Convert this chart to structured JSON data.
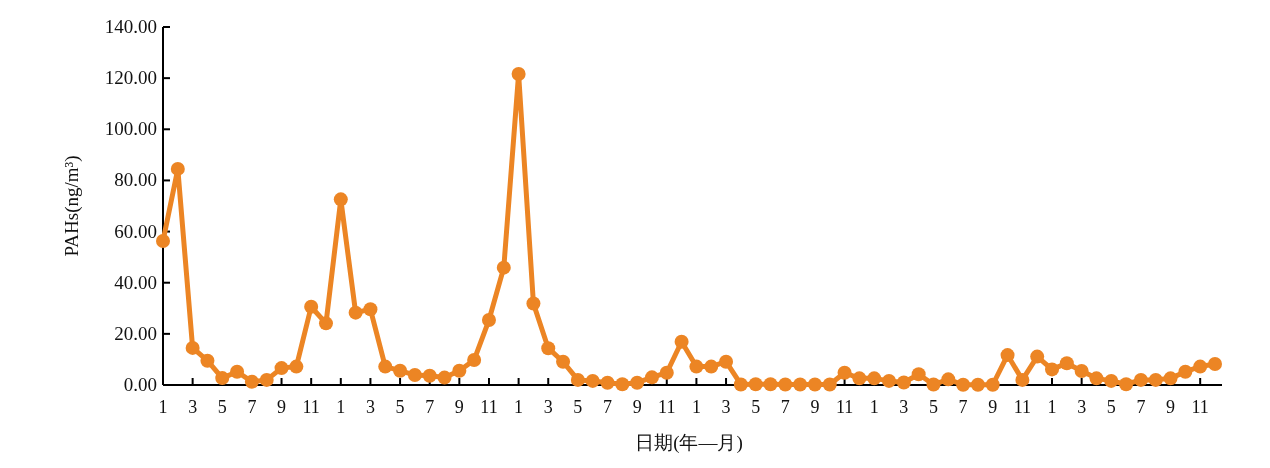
{
  "chart_data": {
    "type": "line",
    "xlabel": "日期(年—月)",
    "ylabel": "PAHs(ng/m³)",
    "categories": [
      "1",
      null,
      "3",
      null,
      "5",
      null,
      "7",
      null,
      "9",
      null,
      "11",
      null,
      "1",
      null,
      "3",
      null,
      "5",
      null,
      "7",
      null,
      "9",
      null,
      "11",
      null,
      "1",
      null,
      "3",
      null,
      "5",
      null,
      "7",
      null,
      "9",
      null,
      "11",
      null,
      "1",
      null,
      "3",
      null,
      "5",
      null,
      "7",
      null,
      "9",
      null,
      "11",
      null,
      "1",
      null,
      "3",
      null,
      "5",
      null,
      "7",
      null,
      "9",
      null,
      "11",
      null,
      "1",
      null,
      "3",
      null,
      "5",
      null,
      "7",
      null,
      "9",
      null,
      "11",
      null
    ],
    "series": [
      {
        "color": "#ec8524",
        "values": [
          56.3,
          84.5,
          14.5,
          9.5,
          2.7,
          5.2,
          1.3,
          2.0,
          6.6,
          7.2,
          30.6,
          24.1,
          72.6,
          28.3,
          29.6,
          7.2,
          5.6,
          3.9,
          3.6,
          2.9,
          5.6,
          9.8,
          25.4,
          45.9,
          121.6,
          31.9,
          14.4,
          9.1,
          2.0,
          1.6,
          0.9,
          0.3,
          0.9,
          3.0,
          4.8,
          16.9,
          7.2,
          7.2,
          9.1,
          0.2,
          0.3,
          0.3,
          0.2,
          0.2,
          0.2,
          0.2,
          4.8,
          2.6,
          2.6,
          1.6,
          1.0,
          4.2,
          0.2,
          2.2,
          0.1,
          0.1,
          0.1,
          11.7,
          2.0,
          11.1,
          6.1,
          8.5,
          5.5,
          2.6,
          1.6,
          0.3,
          2.0,
          2.0,
          2.6,
          5.2,
          7.2,
          8.2
        ]
      }
    ],
    "ylim": [
      0,
      140
    ],
    "yticks": [
      {
        "value": 0,
        "label": "0.00"
      },
      {
        "value": 20,
        "label": "20.00"
      },
      {
        "value": 40,
        "label": "40.00"
      },
      {
        "value": 60,
        "label": "60.00"
      },
      {
        "value": 80,
        "label": "80.00"
      },
      {
        "value": 100,
        "label": "100.00"
      },
      {
        "value": 120,
        "label": "120.00"
      },
      {
        "value": 140,
        "label": "140.00"
      }
    ],
    "marker": "circle",
    "line_style": "solid"
  }
}
